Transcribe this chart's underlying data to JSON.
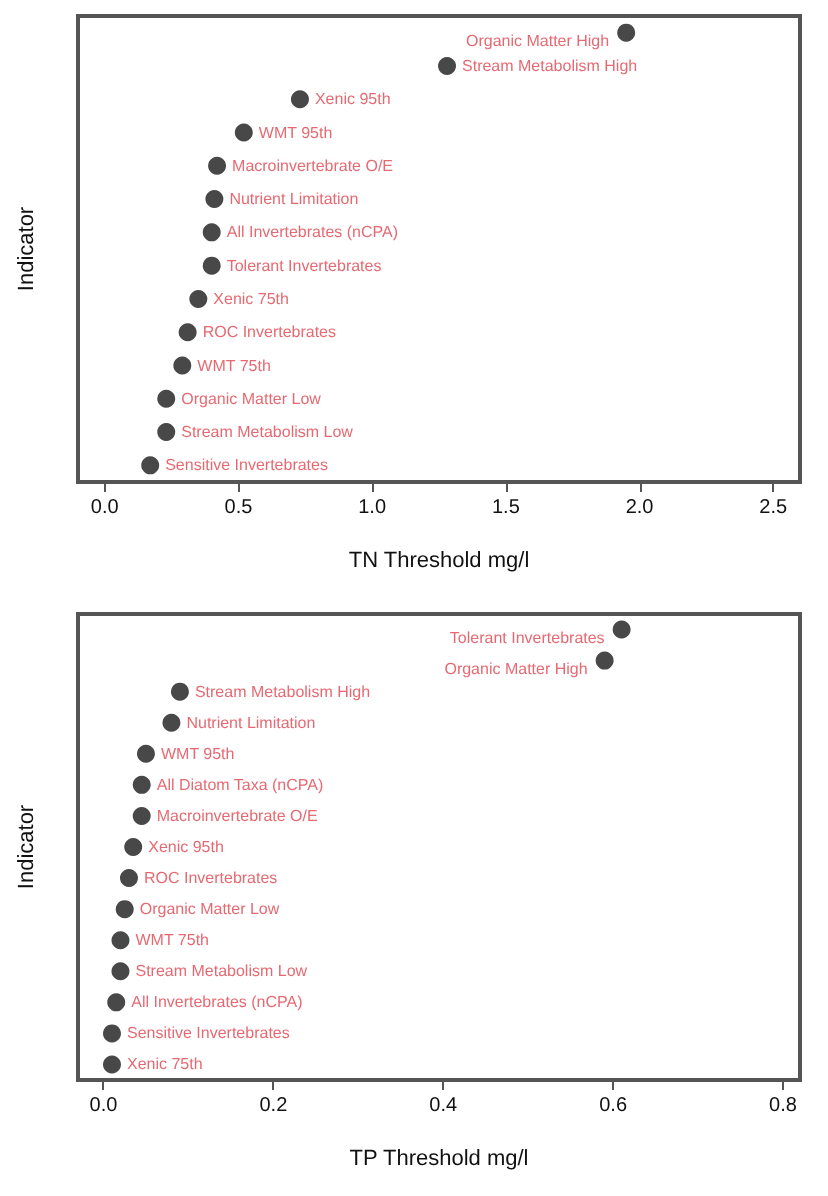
{
  "chart_data": [
    {
      "type": "scatter",
      "orientation": "horizontal",
      "xlabel": "TN Threshold mg/l",
      "ylabel": "Indicator",
      "categories": [
        "Organic Matter High",
        "Stream Metabolism High",
        "Xenic 95th",
        "WMT 95th",
        "Macroinvertebrate O/E",
        "Nutrient Limitation",
        "All Invertebrates (nCPA)",
        "Tolerant Invertebrates",
        "Xenic 75th",
        "ROC Invertebrates",
        "WMT 75th",
        "Organic Matter Low",
        "Stream Metabolism Low",
        "Sensitive Invertebrates"
      ],
      "series": [
        {
          "color": "#1a1a1a",
          "values": [
            1.95,
            1.28,
            0.73,
            0.52,
            0.42,
            0.41,
            0.4,
            0.4,
            0.35,
            0.31,
            0.29,
            0.23,
            0.23,
            0.17
          ]
        }
      ],
      "xlim": [
        -0.1,
        2.6
      ],
      "xticks": [
        {
          "value": 0,
          "label": "0.0"
        },
        {
          "value": 0.5,
          "label": "0.5"
        },
        {
          "value": 1,
          "label": "1.0"
        },
        {
          "value": 1.5,
          "label": "1.5"
        },
        {
          "value": 2,
          "label": "2.0"
        },
        {
          "value": 2.5,
          "label": "2.5"
        }
      ],
      "tick_labels": "x",
      "marker": "circle"
    },
    {
      "type": "scatter",
      "orientation": "horizontal",
      "xlabel": "TP Threshold mg/l",
      "ylabel": "Indicator",
      "categories": [
        "Tolerant Invertebrates",
        "Organic Matter High",
        "Stream Metabolism High",
        "Nutrient Limitation",
        "WMT 95th",
        "All Diatom Taxa (nCPA)",
        "Macroinvertebrate O/E",
        "Xenic 95th",
        "ROC Invertebrates",
        "Organic Matter Low",
        "WMT 75th",
        "Stream Metabolism Low",
        "All Invertebrates (nCPA)",
        "Sensitive Invertebrates",
        "Xenic 75th"
      ],
      "series": [
        {
          "color": "#1a1a1a",
          "values": [
            0.61,
            0.59,
            0.09,
            0.08,
            0.05,
            0.045,
            0.045,
            0.035,
            0.03,
            0.025,
            0.02,
            0.02,
            0.015,
            0.01,
            0.01
          ]
        }
      ],
      "xlim": [
        -0.03,
        0.82
      ],
      "xticks": [
        {
          "value": 0,
          "label": "0.0"
        },
        {
          "value": 0.2,
          "label": "0.2"
        },
        {
          "value": 0.4,
          "label": "0.4"
        },
        {
          "value": 0.6,
          "label": "0.6"
        },
        {
          "value": 0.8,
          "label": "0.8"
        }
      ],
      "tick_labels": "x",
      "marker": "circle"
    }
  ]
}
